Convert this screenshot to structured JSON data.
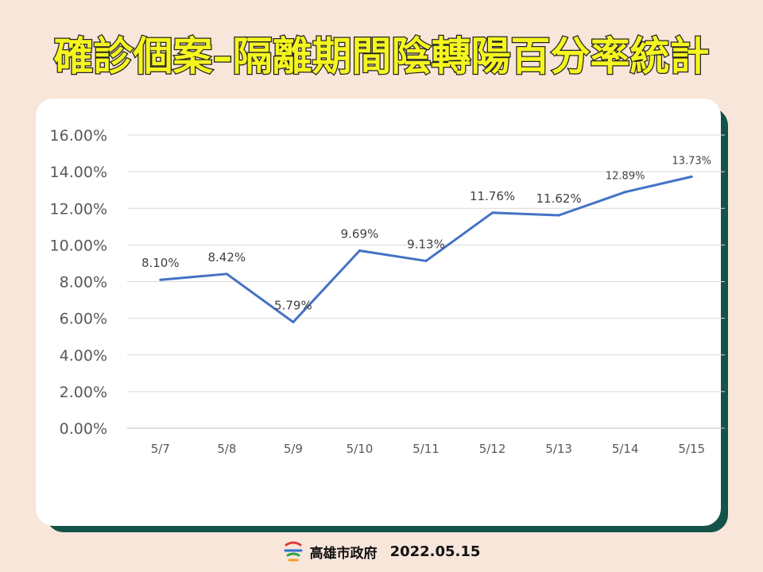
{
  "title": "確診個案–隔離期間陰轉陽百分率統計",
  "footer": {
    "org": "高雄市政府",
    "date": "2022.05.15"
  },
  "colors": {
    "line": "#4472c4",
    "title_fill": "#f5f51f",
    "title_stroke": "#222222",
    "card_shadow": "#13534a",
    "background": "#f8e6da"
  },
  "chart_data": {
    "type": "line",
    "categories": [
      "5/7",
      "5/8",
      "5/9",
      "5/10",
      "5/11",
      "5/12",
      "5/13",
      "5/14",
      "5/15"
    ],
    "series": [
      {
        "values": [
          8.1,
          8.42,
          5.79,
          9.69,
          9.13,
          11.76,
          11.62,
          12.89,
          13.73
        ]
      }
    ],
    "data_labels": [
      "8.10%",
      "8.42%",
      "5.79%",
      "9.69%",
      "9.13%",
      "11.76%",
      "11.62%",
      "12.89%",
      "13.73%"
    ],
    "y_ticks": [
      "0.00%",
      "2.00%",
      "4.00%",
      "6.00%",
      "8.00%",
      "10.00%",
      "12.00%",
      "14.00%",
      "16.00%"
    ],
    "ylim": [
      0,
      16
    ],
    "grid": true,
    "legend": "none"
  }
}
